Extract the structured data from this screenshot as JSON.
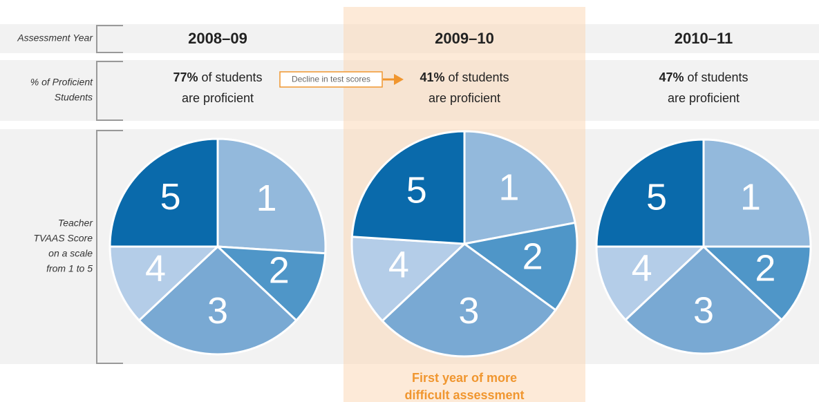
{
  "row_labels": [
    [
      "Assessment Year"
    ],
    [
      "% of Proficient",
      "Students"
    ],
    [
      "Teacher",
      "TVAAS Score",
      "on a scale",
      "from 1 to 5"
    ]
  ],
  "years": [
    "2008–09",
    "2009–10",
    "2010–11"
  ],
  "proficiency": [
    {
      "percent": "77%",
      "line1": "of students",
      "line2": "are proficient"
    },
    {
      "percent": "41%",
      "line1": "of students",
      "line2": "are proficient"
    },
    {
      "percent": "47%",
      "line1": "of students",
      "line2": "are proficient"
    }
  ],
  "annotation": "Decline in test scores",
  "highlight_note": [
    "First year of more",
    "difficult assessment"
  ],
  "chart_data": [
    {
      "type": "pie",
      "categories": [
        "1",
        "2",
        "3",
        "4",
        "5"
      ],
      "values": [
        26,
        11,
        26,
        12,
        25
      ],
      "colors": [
        "#93b9dc",
        "#4f96c8",
        "#79a9d3",
        "#b4cde8",
        "#0a6aab"
      ]
    },
    {
      "type": "pie",
      "categories": [
        "1",
        "2",
        "3",
        "4",
        "5"
      ],
      "values": [
        22,
        13,
        28,
        13,
        24
      ],
      "colors": [
        "#93b9dc",
        "#4f96c8",
        "#79a9d3",
        "#b4cde8",
        "#0a6aab"
      ]
    },
    {
      "type": "pie",
      "categories": [
        "1",
        "2",
        "3",
        "4",
        "5"
      ],
      "values": [
        25,
        12,
        26,
        12,
        25
      ],
      "colors": [
        "#93b9dc",
        "#4f96c8",
        "#79a9d3",
        "#b4cde8",
        "#0a6aab"
      ]
    }
  ]
}
